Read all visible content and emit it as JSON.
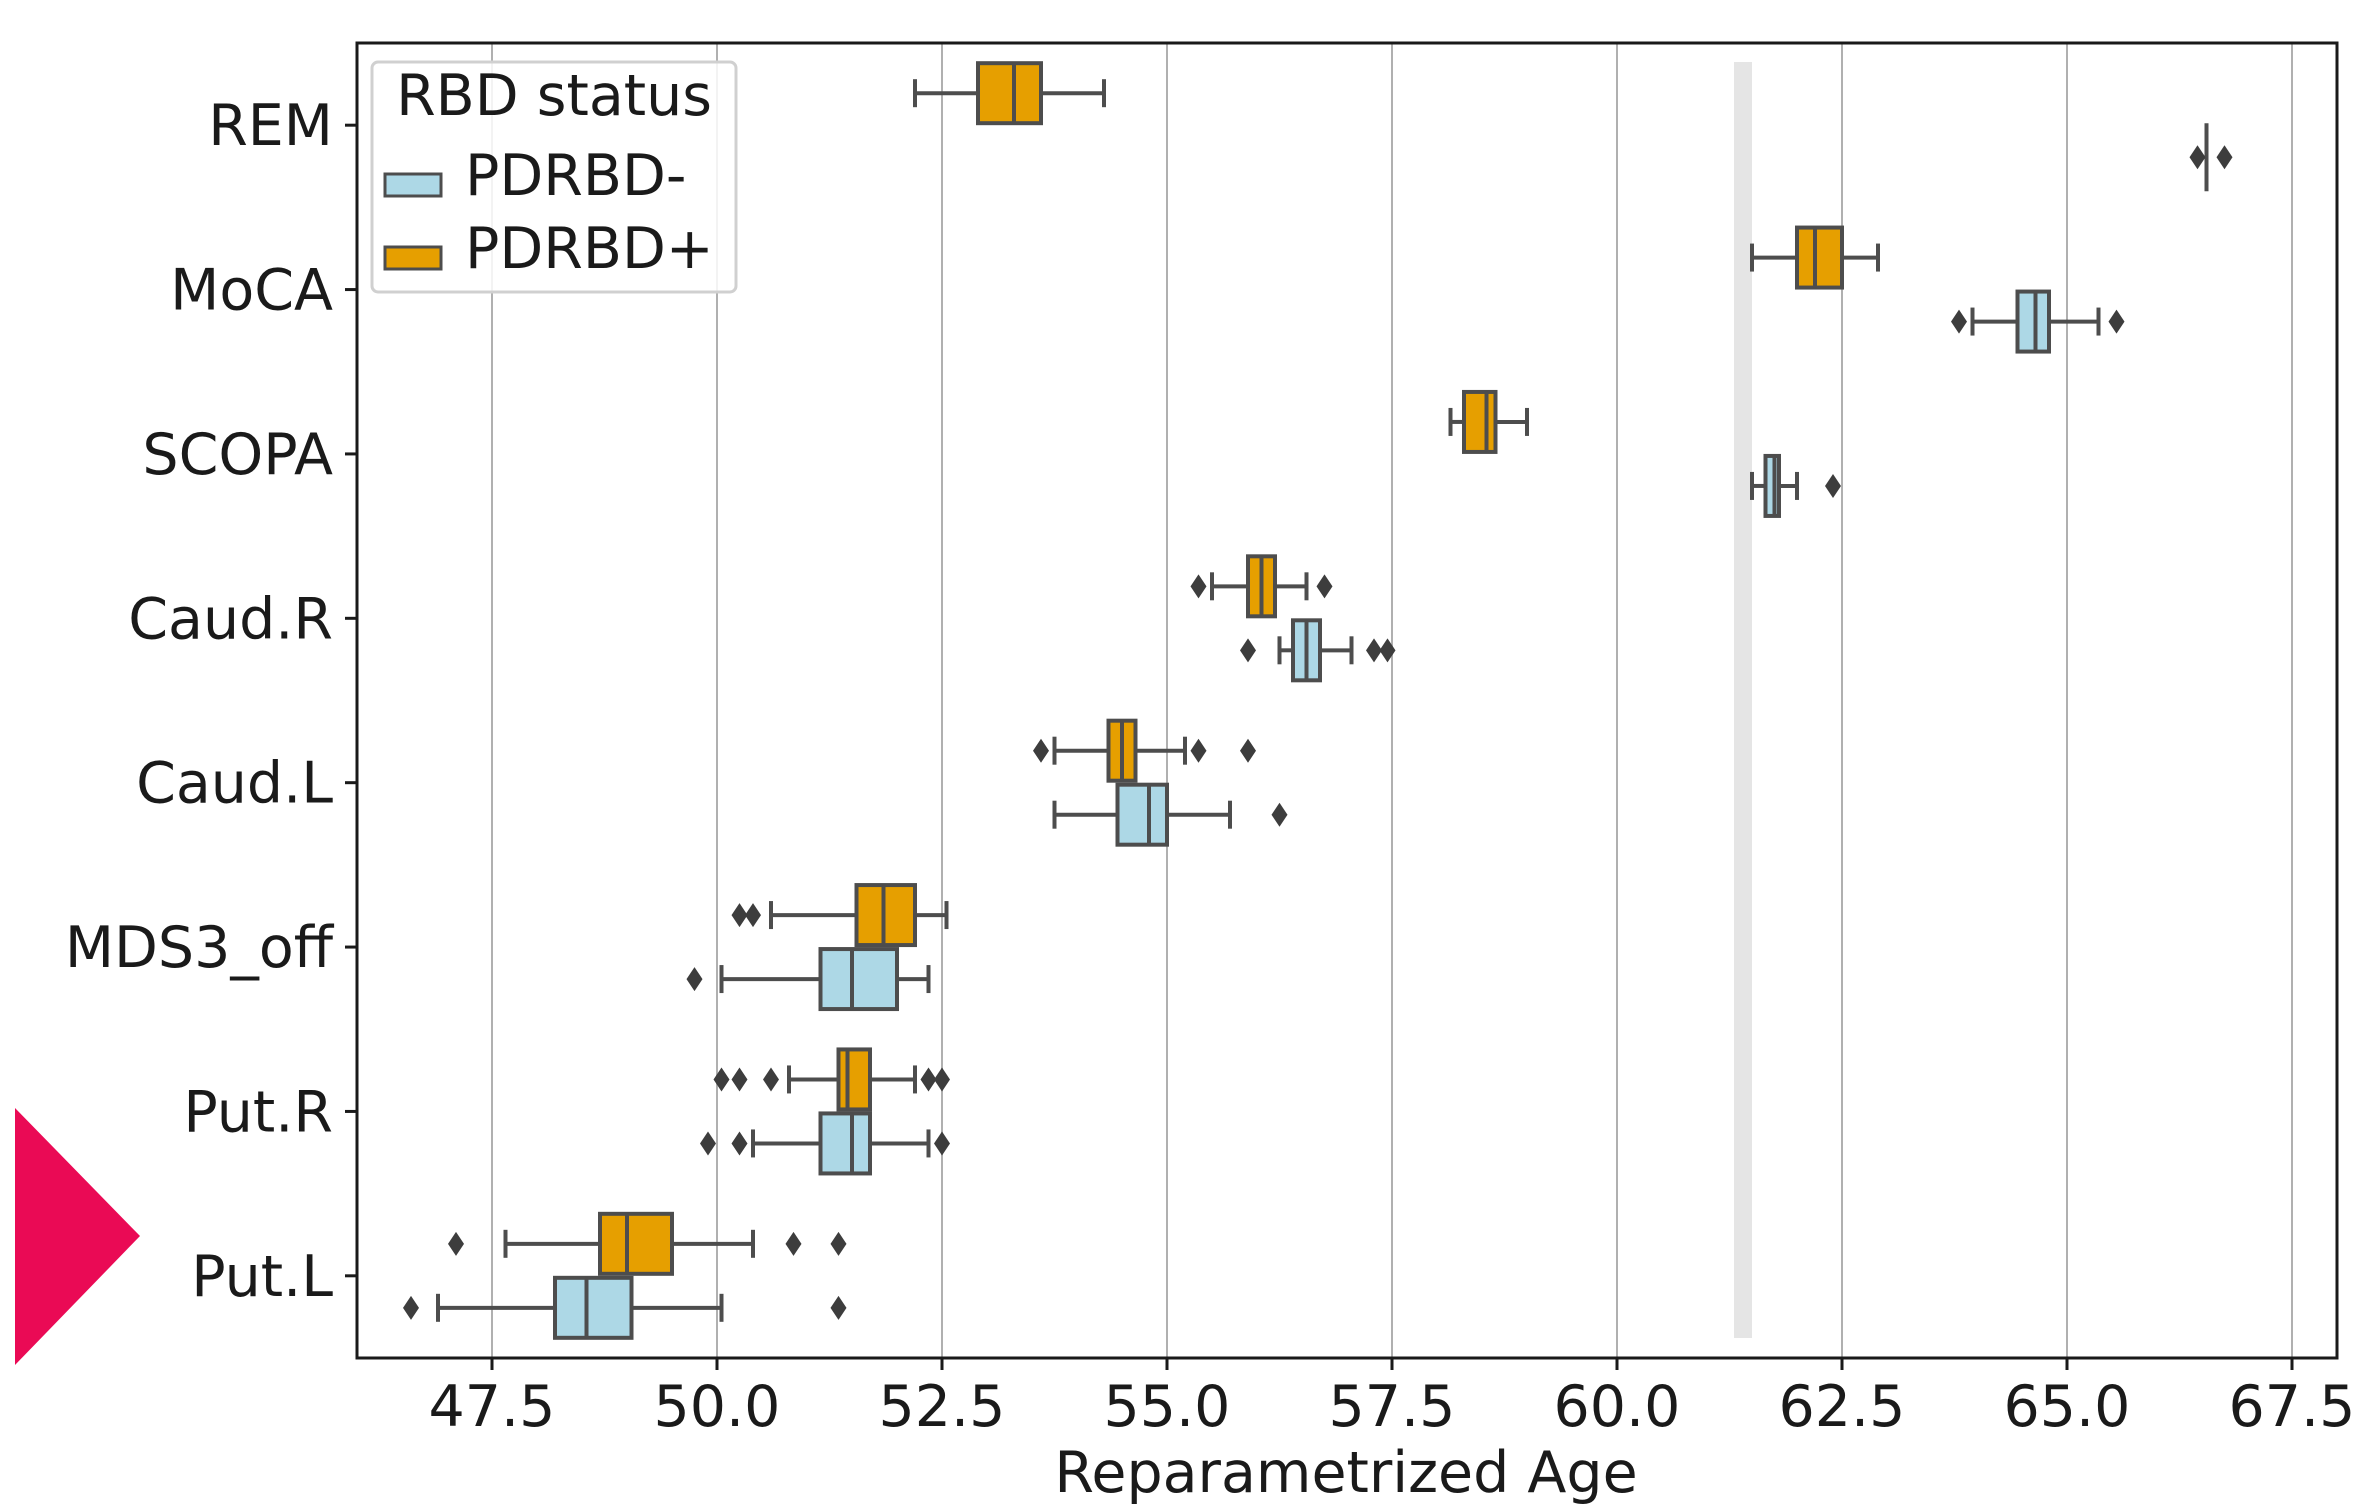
{
  "chart_data": {
    "type": "box",
    "orientation": "horizontal",
    "categories": [
      "REM",
      "MoCA",
      "SCOPA",
      "Caud.R",
      "Caud.L",
      "MDS3_off",
      "Put.R",
      "Put.L"
    ],
    "xlabel": "Reparametrized Age",
    "ylabel": "",
    "xlim": [
      46.0,
      68.0
    ],
    "xticks": [
      47.5,
      50.0,
      52.5,
      55.0,
      57.5,
      60.0,
      62.5,
      65.0,
      67.5
    ],
    "xtick_labels": [
      "47.5",
      "50.0",
      "52.5",
      "55.0",
      "57.5",
      "60.0",
      "62.5",
      "65.0",
      "67.5"
    ],
    "grid": "vertical",
    "legend": {
      "title": "RBD status",
      "placement": "upper-left",
      "entries": [
        {
          "label": "PDRBD-",
          "color": "#add8e6"
        },
        {
          "label": "PDRBD+",
          "color": "#e69f00"
        }
      ]
    },
    "vertical_band": {
      "x": 61.4,
      "color": "#e5e5e5"
    },
    "series": [
      {
        "name": "PDRBD+",
        "color": "#e69f00",
        "boxes": [
          {
            "category": "REM",
            "whislo": 52.2,
            "q1": 52.9,
            "med": 53.3,
            "q3": 53.6,
            "whishi": 54.3,
            "fliers": []
          },
          {
            "category": "MoCA",
            "whislo": 61.5,
            "q1": 62.0,
            "med": 62.2,
            "q3": 62.5,
            "whishi": 62.9,
            "fliers": []
          },
          {
            "category": "SCOPA",
            "whislo": 58.15,
            "q1": 58.3,
            "med": 58.55,
            "q3": 58.65,
            "whishi": 59.0,
            "fliers": []
          },
          {
            "category": "Caud.R",
            "whislo": 55.5,
            "q1": 55.9,
            "med": 56.05,
            "q3": 56.2,
            "whishi": 56.55,
            "fliers": [
              55.35,
              56.75
            ]
          },
          {
            "category": "Caud.L",
            "whislo": 53.75,
            "q1": 54.35,
            "med": 54.5,
            "q3": 54.65,
            "whishi": 55.2,
            "fliers": [
              53.6,
              55.35,
              55.9
            ]
          },
          {
            "category": "MDS3_off",
            "whislo": 50.6,
            "q1": 51.55,
            "med": 51.85,
            "q3": 52.2,
            "whishi": 52.55,
            "fliers": [
              50.25,
              50.4
            ]
          },
          {
            "category": "Put.R",
            "whislo": 50.8,
            "q1": 51.35,
            "med": 51.45,
            "q3": 51.7,
            "whishi": 52.2,
            "fliers": [
              50.05,
              50.25,
              50.6,
              52.35,
              52.5
            ]
          },
          {
            "category": "Put.L",
            "whislo": 47.65,
            "q1": 48.7,
            "med": 49.0,
            "q3": 49.5,
            "whishi": 50.4,
            "fliers": [
              47.1,
              50.85,
              51.35
            ]
          }
        ]
      },
      {
        "name": "PDRBD-",
        "color": "#add8e6",
        "boxes": [
          {
            "category": "REM",
            "whislo": 66.55,
            "q1": 66.55,
            "med": 66.55,
            "q3": 66.55,
            "whishi": 66.55,
            "fliers": [
              66.45,
              66.75
            ]
          },
          {
            "category": "MoCA",
            "whislo": 63.95,
            "q1": 64.45,
            "med": 64.65,
            "q3": 64.8,
            "whishi": 65.35,
            "fliers": [
              63.8,
              65.55
            ]
          },
          {
            "category": "SCOPA",
            "whislo": 61.5,
            "q1": 61.65,
            "med": 61.75,
            "q3": 61.8,
            "whishi": 62.0,
            "fliers": [
              62.4
            ]
          },
          {
            "category": "Caud.R",
            "whislo": 56.25,
            "q1": 56.4,
            "med": 56.55,
            "q3": 56.7,
            "whishi": 57.05,
            "fliers": [
              55.9,
              57.3,
              57.45
            ]
          },
          {
            "category": "Caud.L",
            "whislo": 53.75,
            "q1": 54.45,
            "med": 54.8,
            "q3": 55.0,
            "whishi": 55.7,
            "fliers": [
              56.25
            ]
          },
          {
            "category": "MDS3_off",
            "whislo": 50.05,
            "q1": 51.15,
            "med": 51.5,
            "q3": 52.0,
            "whishi": 52.35,
            "fliers": [
              49.75
            ]
          },
          {
            "category": "Put.R",
            "whislo": 50.4,
            "q1": 51.15,
            "med": 51.5,
            "q3": 51.7,
            "whishi": 52.35,
            "fliers": [
              49.9,
              50.25,
              52.5
            ]
          },
          {
            "category": "Put.L",
            "whislo": 46.9,
            "q1": 48.2,
            "med": 48.55,
            "q3": 49.05,
            "whishi": 50.05,
            "fliers": [
              46.6,
              51.35
            ]
          }
        ]
      }
    ]
  }
}
